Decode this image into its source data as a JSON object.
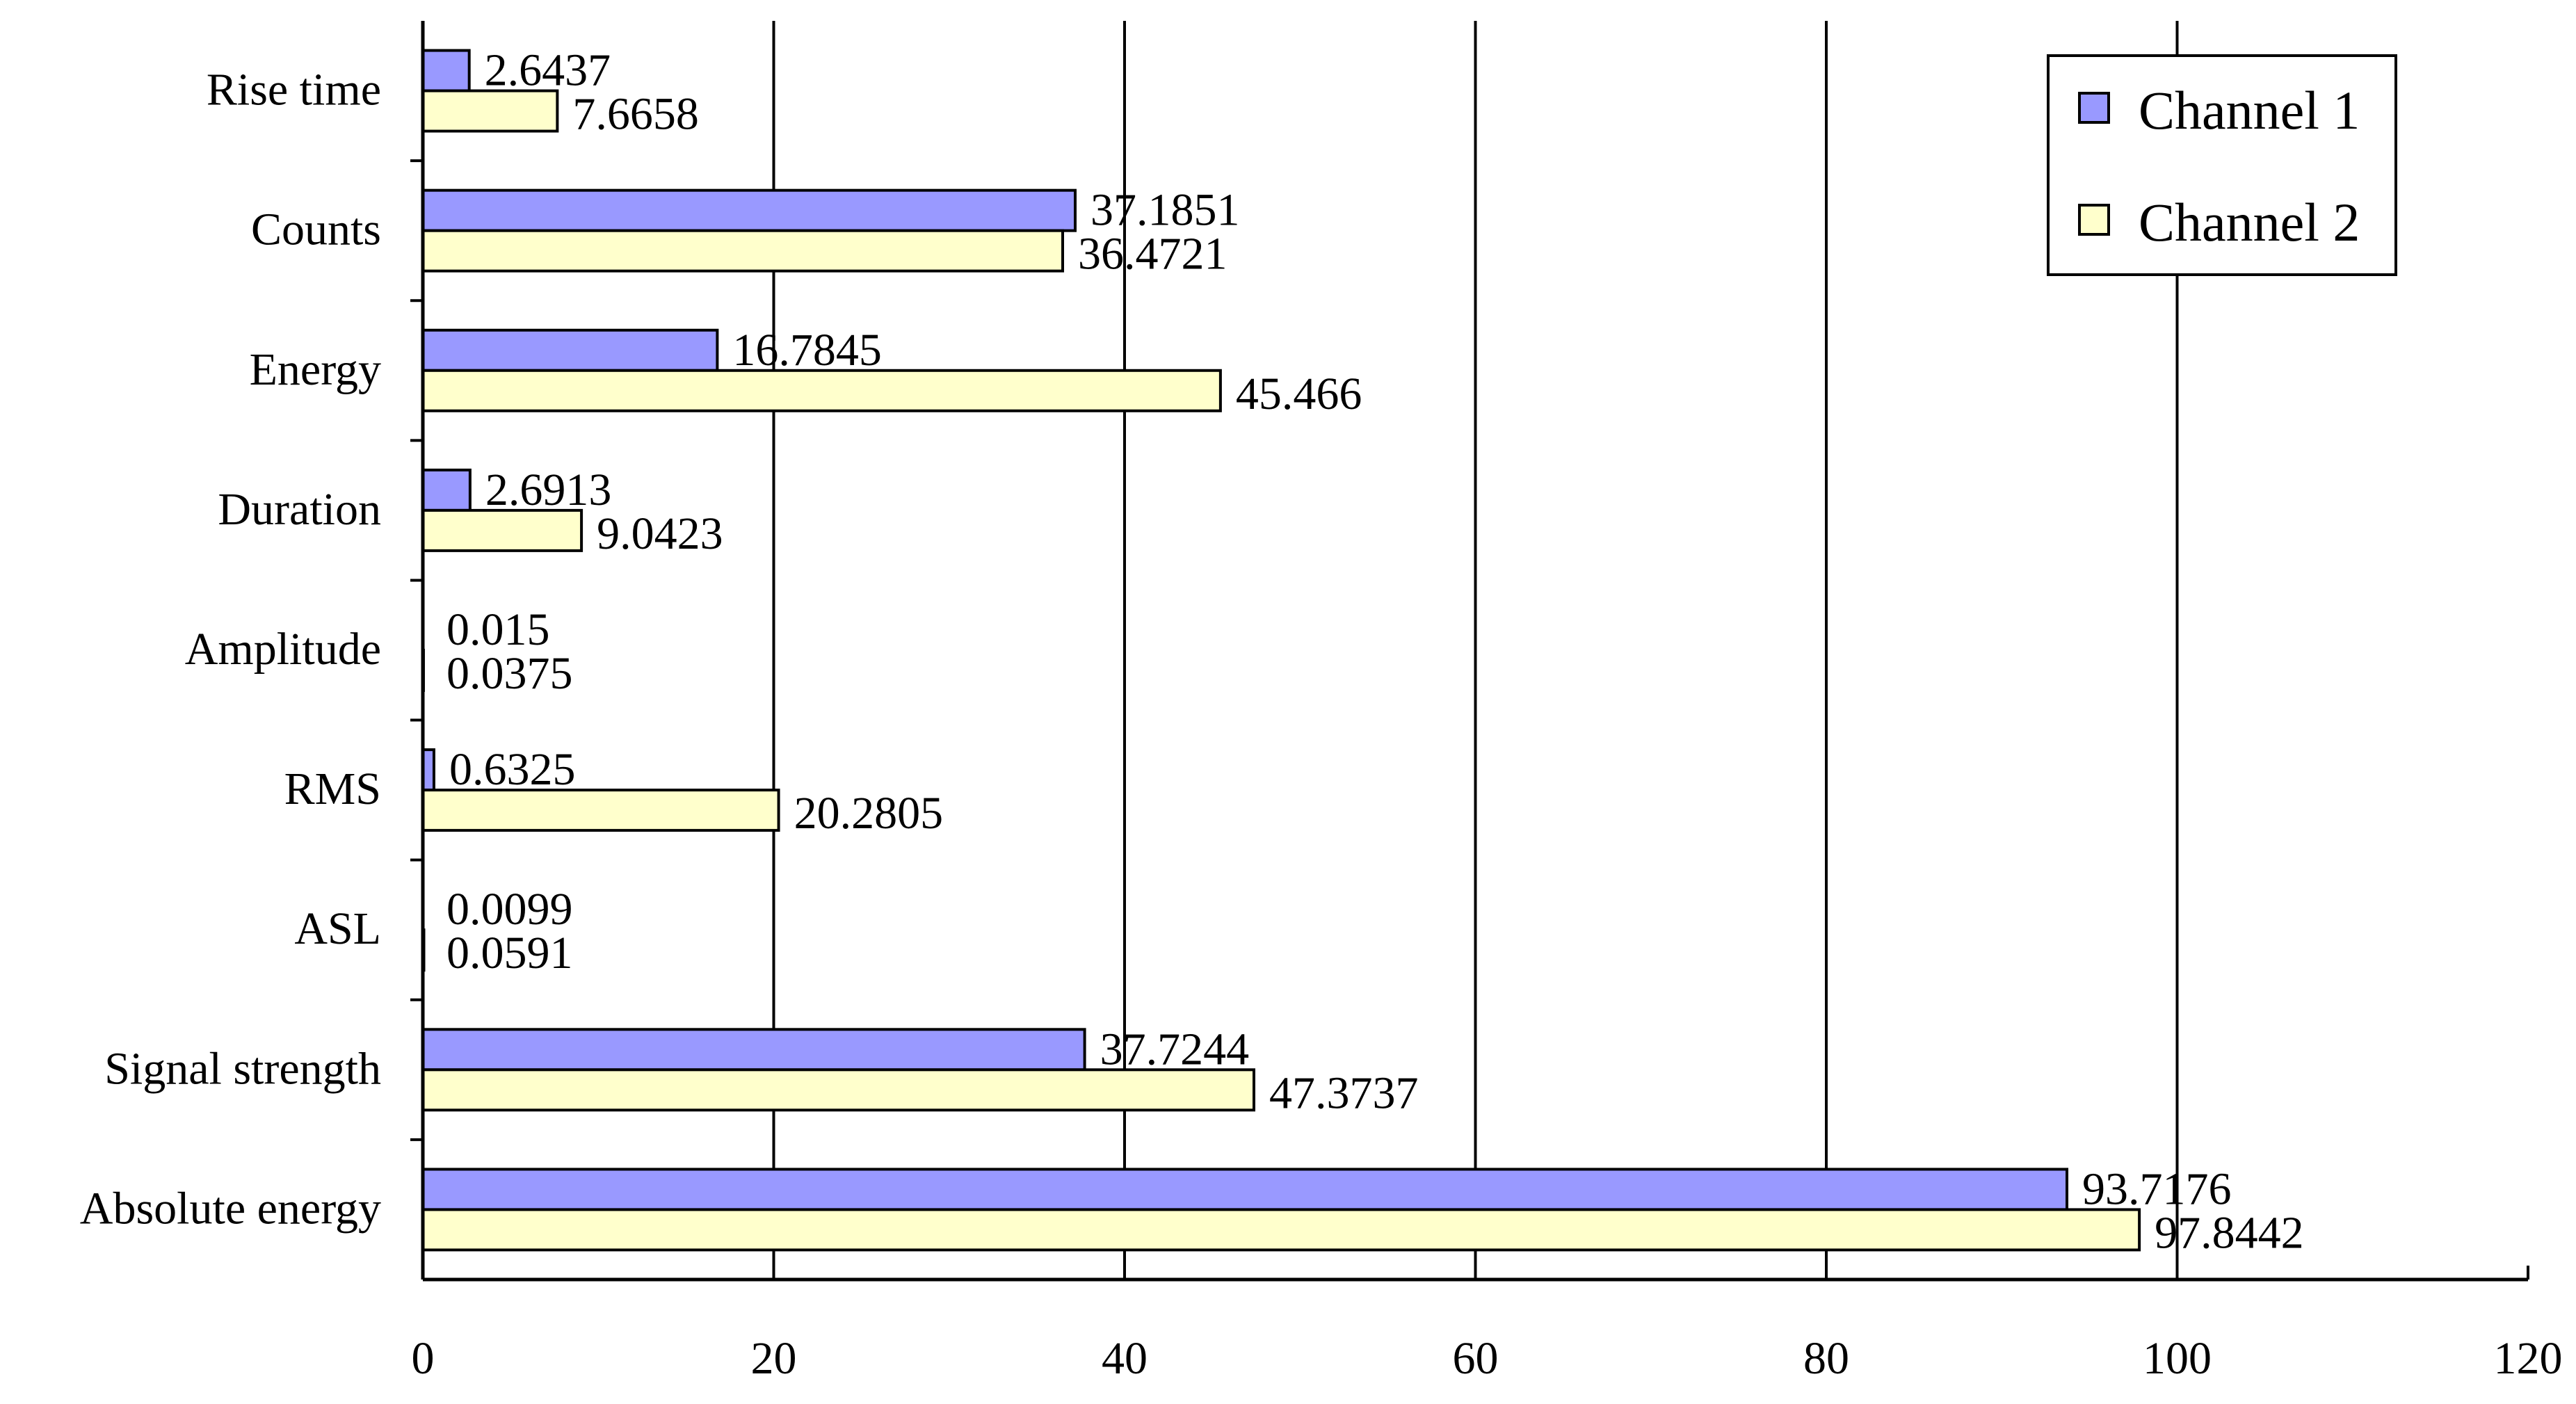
{
  "chart_data": {
    "type": "bar",
    "orientation": "horizontal",
    "title": "",
    "xlabel": "",
    "ylabel": "",
    "xlim": [
      0,
      120
    ],
    "x_ticks": [
      0,
      20,
      40,
      60,
      80,
      100,
      120
    ],
    "grid": "vertical lines at 20, 40, 60, 80, 100",
    "legend_position": "top-right",
    "categories": [
      "Rise time",
      "Counts",
      "Energy",
      "Duration",
      "Amplitude",
      "RMS",
      "ASL",
      "Signal strength",
      "Absolute energy"
    ],
    "series": [
      {
        "name": "Channel 1",
        "color": "#9999ff",
        "values": [
          2.6437,
          37.1851,
          16.7845,
          2.6913,
          0.015,
          0.6325,
          0.0099,
          37.7244,
          93.7176
        ],
        "labels": [
          "2.6437",
          "37.1851",
          "16.7845",
          "2.6913",
          "0.015",
          "0.6325",
          "0.0099",
          "37.7244",
          "93.7176"
        ]
      },
      {
        "name": "Channel 2",
        "color": "#ffffcc",
        "values": [
          7.6658,
          36.4721,
          45.466,
          9.0423,
          0.0375,
          20.2805,
          0.0591,
          47.3737,
          97.8442
        ],
        "labels": [
          "7.6658",
          "36.4721",
          "45.466",
          "9.0423",
          "0.0375",
          "20.2805",
          "0.0591",
          "47.3737",
          "97.8442"
        ]
      }
    ]
  }
}
